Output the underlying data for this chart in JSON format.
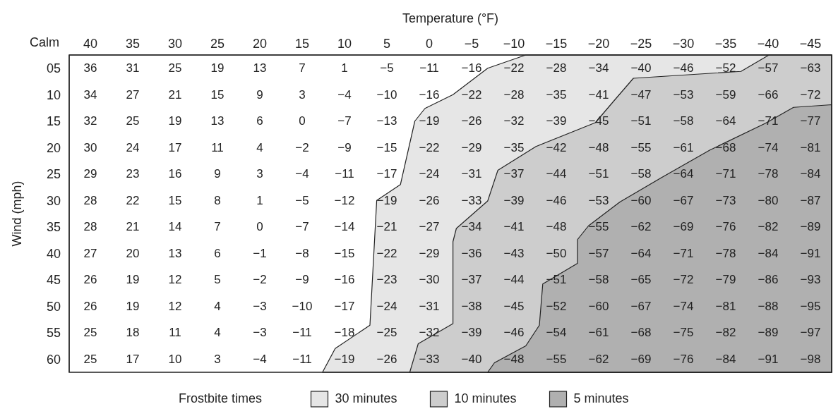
{
  "chart_data": {
    "type": "heatmap",
    "xlabel": "Temperature (°F)",
    "ylabel": "Wind (mph)",
    "annotations": [
      "Calm"
    ],
    "xlim": [
      42.5,
      -47.5
    ],
    "xticks": [
      40,
      35,
      30,
      25,
      20,
      15,
      10,
      5,
      0,
      -5,
      -10,
      -15,
      -20,
      -25,
      -30,
      -35,
      -40,
      -45
    ],
    "ylim": [
      62.5,
      2.5
    ],
    "yticks": [
      {
        "value": 5,
        "label": "05"
      },
      10,
      15,
      20,
      25,
      30,
      35,
      40,
      45,
      50,
      55,
      60
    ],
    "cells": [
      [
        36,
        31,
        25,
        19,
        13,
        7,
        1,
        -5,
        -11,
        -16,
        -22,
        -28,
        -34,
        -40,
        -46,
        -52,
        -57,
        -63
      ],
      [
        34,
        27,
        21,
        15,
        9,
        3,
        -4,
        -10,
        -16,
        -22,
        -28,
        -35,
        -41,
        -47,
        -53,
        -59,
        -66,
        -72
      ],
      [
        32,
        25,
        19,
        13,
        6,
        0,
        -7,
        -13,
        -19,
        -26,
        -32,
        -39,
        -45,
        -51,
        -58,
        -64,
        -71,
        -77
      ],
      [
        30,
        24,
        17,
        11,
        4,
        -2,
        -9,
        -15,
        -22,
        -29,
        -35,
        -42,
        -48,
        -55,
        -61,
        -68,
        -74,
        -81
      ],
      [
        29,
        23,
        16,
        9,
        3,
        -4,
        -11,
        -17,
        -24,
        -31,
        -37,
        -44,
        -51,
        -58,
        -64,
        -71,
        -78,
        -84
      ],
      [
        28,
        22,
        15,
        8,
        1,
        -5,
        -12,
        -19,
        -26,
        -33,
        -39,
        -46,
        -53,
        -60,
        -67,
        -73,
        -80,
        -87
      ],
      [
        28,
        21,
        14,
        7,
        0,
        -7,
        -14,
        -21,
        -27,
        -34,
        -41,
        -48,
        -55,
        -62,
        -69,
        -76,
        -82,
        -89
      ],
      [
        27,
        20,
        13,
        6,
        -1,
        -8,
        -15,
        -22,
        -29,
        -36,
        -43,
        -50,
        -57,
        -64,
        -71,
        -78,
        -84,
        -91
      ],
      [
        26,
        19,
        12,
        5,
        -2,
        -9,
        -16,
        -23,
        -30,
        -37,
        -44,
        -51,
        -58,
        -65,
        -72,
        -79,
        -86,
        -93
      ],
      [
        26,
        19,
        12,
        4,
        -3,
        -10,
        -17,
        -24,
        -31,
        -38,
        -45,
        -52,
        -60,
        -67,
        -74,
        -81,
        -88,
        -95
      ],
      [
        25,
        18,
        11,
        4,
        -3,
        -11,
        -18,
        -25,
        -32,
        -39,
        -46,
        -54,
        -61,
        -68,
        -75,
        -82,
        -89,
        -97
      ],
      [
        25,
        17,
        10,
        3,
        -4,
        -11,
        -19,
        -26,
        -33,
        -40,
        -48,
        -55,
        -62,
        -69,
        -76,
        -84,
        -91,
        -98
      ]
    ],
    "legend_title": "Frostbite times",
    "legend": "bottom",
    "data_labels": true,
    "series": [
      {
        "name": "30 minutes",
        "type": "area",
        "color": "#e6e6e6",
        "x": [
          -47.5,
          -11.4,
          -6.9,
          -2.8,
          0.5,
          1.7,
          3.4,
          6.2,
          7.0,
          11.1,
          12.6,
          -47.5
        ],
        "values": [
          2.5,
          2.5,
          5,
          10,
          12.6,
          15,
          27,
          30,
          53.6,
          58,
          62.5,
          62.5
        ],
        "value_labels": [
          null,
          null,
          null,
          null,
          null,
          null,
          null,
          null,
          null,
          null,
          null,
          null
        ]
      },
      {
        "name": "10 minutes",
        "type": "area",
        "color": "#cdcdcd",
        "x": [
          -47.5,
          -40.1,
          -36.8,
          -24.1,
          -22.0,
          -19.6,
          -12.6,
          -8.1,
          -6.9,
          -3.2,
          -2.8,
          -2.8,
          1.3,
          2.3,
          -47.5
        ],
        "values": [
          2.5,
          2.5,
          5.6,
          6.9,
          10.8,
          15.3,
          19.8,
          24.3,
          30.1,
          35.3,
          37.8,
          53.3,
          57.1,
          62.5,
          62.5
        ],
        "value_labels": [
          null,
          null,
          null,
          null,
          null,
          null,
          null,
          null,
          null,
          null,
          null,
          null,
          null,
          null,
          null
        ]
      },
      {
        "name": "5 minutes",
        "type": "area",
        "color": "#b0b0b0",
        "x": [
          -47.5,
          -43,
          -39.7,
          -33.1,
          -27.4,
          -22.5,
          -18.8,
          -17.5,
          -17.5,
          -13.4,
          -13.0,
          -11.4,
          -7.7,
          -6.9,
          -47.5
        ],
        "values": [
          11.9,
          12.4,
          15.4,
          20.5,
          25.7,
          30.3,
          34.8,
          37.4,
          41.9,
          45.8,
          53.6,
          57.5,
          60.7,
          62.5,
          62.5
        ],
        "value_labels": [
          null,
          null,
          null,
          null,
          null,
          null,
          null,
          null,
          null,
          null,
          null,
          null,
          null,
          null,
          null
        ]
      }
    ]
  }
}
